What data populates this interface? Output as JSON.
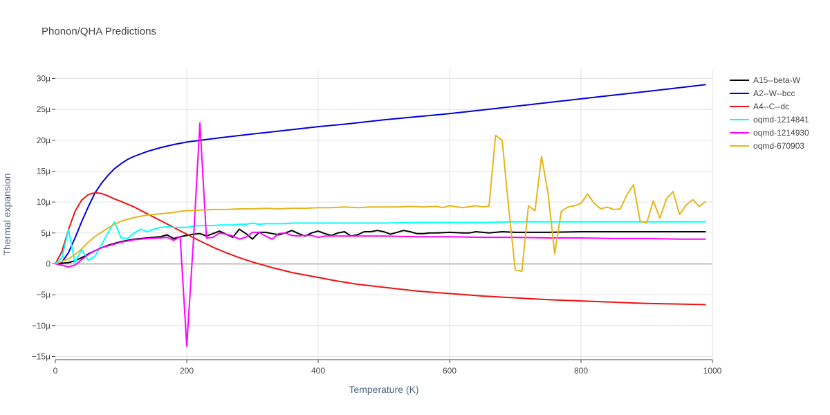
{
  "chart_data": {
    "type": "line",
    "title": "Phonon/QHA Predictions",
    "xlabel": "Temperature (K)",
    "ylabel": "Thermal expansion",
    "xlim": [
      0,
      1000
    ],
    "ylim": [
      -15.5,
      31.5
    ],
    "xticks": [
      0,
      200,
      400,
      600,
      800,
      1000
    ],
    "xtick_labels": [
      "0",
      "200",
      "400",
      "600",
      "800",
      "1000"
    ],
    "yticks": [
      -15,
      -10,
      -5,
      0,
      5,
      10,
      15,
      20,
      25,
      30
    ],
    "ytick_labels": [
      "−15µ",
      "−10µ",
      "−5µ",
      "0",
      "5µ",
      "10µ",
      "15µ",
      "20µ",
      "25µ",
      "30µ"
    ],
    "series": [
      {
        "name": "A15--beta-W",
        "color": "#000000",
        "x": [
          0,
          10,
          20,
          30,
          40,
          50,
          60,
          70,
          80,
          90,
          100,
          120,
          140,
          160,
          170,
          180,
          190,
          200,
          210,
          220,
          230,
          240,
          250,
          260,
          270,
          280,
          290,
          300,
          310,
          320,
          330,
          340,
          350,
          360,
          370,
          380,
          390,
          400,
          410,
          420,
          430,
          440,
          450,
          460,
          470,
          480,
          490,
          500,
          510,
          520,
          530,
          540,
          550,
          560,
          570,
          580,
          600,
          620,
          630,
          640,
          650,
          660,
          680,
          700,
          750,
          800,
          850,
          900,
          950,
          990
        ],
        "y": [
          0,
          0.1,
          0.2,
          0.5,
          1.0,
          1.6,
          2.1,
          2.6,
          3.0,
          3.3,
          3.6,
          4.0,
          4.2,
          4.4,
          4.7,
          4.1,
          4.4,
          4.6,
          4.8,
          4.9,
          4.5,
          4.9,
          5.3,
          4.8,
          4.3,
          5.6,
          4.9,
          4.0,
          5.1,
          5.1,
          4.9,
          4.7,
          5.0,
          5.4,
          4.9,
          4.5,
          5.0,
          5.3,
          4.9,
          4.6,
          5.0,
          5.2,
          4.5,
          4.7,
          5.2,
          5.2,
          5.4,
          5.2,
          4.8,
          5.1,
          5.4,
          5.2,
          4.9,
          4.9,
          5.0,
          5.0,
          5.1,
          5.0,
          5.0,
          5.2,
          5.1,
          5.0,
          5.2,
          5.1,
          5.1,
          5.2,
          5.2,
          5.2,
          5.2,
          5.2
        ]
      },
      {
        "name": "A2--W--bcc",
        "color": "#0000dd",
        "x": [
          0,
          10,
          20,
          30,
          40,
          50,
          60,
          70,
          80,
          90,
          100,
          110,
          120,
          140,
          160,
          180,
          200,
          250,
          300,
          350,
          400,
          450,
          500,
          550,
          600,
          650,
          700,
          750,
          800,
          850,
          900,
          950,
          990
        ],
        "y": [
          0,
          0.3,
          1.8,
          4.2,
          6.8,
          9.2,
          11.4,
          13.0,
          14.3,
          15.4,
          16.2,
          16.9,
          17.4,
          18.2,
          18.8,
          19.3,
          19.7,
          20.4,
          21.0,
          21.6,
          22.2,
          22.7,
          23.3,
          23.8,
          24.3,
          24.9,
          25.5,
          26.1,
          26.7,
          27.3,
          27.9,
          28.5,
          29.0
        ]
      },
      {
        "name": "A4--C--dc",
        "color": "#ee1111",
        "x": [
          0,
          10,
          20,
          30,
          40,
          50,
          60,
          70,
          80,
          90,
          100,
          120,
          140,
          160,
          180,
          200,
          220,
          240,
          260,
          280,
          300,
          330,
          360,
          400,
          430,
          460,
          500,
          550,
          600,
          650,
          700,
          750,
          800,
          850,
          900,
          950,
          990
        ],
        "y": [
          0,
          2.0,
          5.5,
          8.5,
          10.3,
          11.2,
          11.5,
          11.4,
          11.0,
          10.5,
          10.1,
          9.2,
          8.1,
          7.0,
          5.9,
          4.8,
          3.7,
          2.7,
          1.8,
          1.0,
          0.3,
          -0.6,
          -1.4,
          -2.2,
          -2.8,
          -3.3,
          -3.8,
          -4.4,
          -4.8,
          -5.2,
          -5.5,
          -5.8,
          -6.0,
          -6.2,
          -6.4,
          -6.5,
          -6.6
        ]
      },
      {
        "name": "oqmd-1214841",
        "color": "#00ffff",
        "x": [
          0,
          10,
          20,
          30,
          40,
          50,
          60,
          70,
          80,
          90,
          100,
          110,
          120,
          130,
          140,
          150,
          160,
          170,
          180,
          190,
          200,
          210,
          220,
          230,
          240,
          250,
          260,
          270,
          280,
          290,
          300,
          310,
          320,
          330,
          340,
          350,
          360,
          400,
          450,
          500,
          550,
          600,
          650,
          700,
          750,
          800,
          850,
          900,
          950,
          990
        ],
        "y": [
          0,
          1.0,
          5.5,
          0.2,
          2.3,
          0.6,
          1.2,
          3.0,
          5.0,
          6.8,
          4.2,
          4.1,
          5.0,
          5.6,
          5.2,
          5.6,
          5.9,
          6.0,
          5.9,
          5.9,
          5.9,
          6.1,
          6.2,
          6.2,
          6.2,
          6.3,
          6.3,
          6.3,
          6.4,
          6.4,
          6.6,
          6.4,
          6.5,
          6.5,
          6.5,
          6.5,
          6.6,
          6.6,
          6.6,
          6.6,
          6.7,
          6.7,
          6.7,
          6.8,
          6.8,
          6.8,
          6.8,
          6.8,
          6.8,
          6.8
        ]
      },
      {
        "name": "oqmd-1214930",
        "color": "#ff00ff",
        "x": [
          0,
          10,
          20,
          30,
          40,
          50,
          60,
          70,
          80,
          90,
          100,
          120,
          140,
          160,
          170,
          180,
          190,
          200,
          210,
          220,
          230,
          240,
          250,
          260,
          270,
          280,
          290,
          300,
          310,
          320,
          330,
          340,
          350,
          360,
          370,
          380,
          390,
          400,
          410,
          420,
          450,
          500,
          550,
          600,
          650,
          700,
          750,
          800,
          850,
          900,
          950,
          990
        ],
        "y": [
          0,
          -0.2,
          -0.5,
          -0.2,
          0.7,
          1.5,
          2.1,
          2.6,
          2.9,
          3.2,
          3.5,
          3.9,
          4.1,
          4.2,
          4.3,
          3.8,
          4.4,
          -13.3,
          3.5,
          22.8,
          4.2,
          4.3,
          5.0,
          4.8,
          4.5,
          4.0,
          4.3,
          5.1,
          5.1,
          4.5,
          4.0,
          4.9,
          5.0,
          4.6,
          4.5,
          4.6,
          4.6,
          4.3,
          4.5,
          4.5,
          4.5,
          4.5,
          4.4,
          4.4,
          4.3,
          4.3,
          4.2,
          4.2,
          4.1,
          4.1,
          4.0,
          4.0
        ]
      },
      {
        "name": "oqmd-670903",
        "color": "#e5b51a",
        "x": [
          0,
          10,
          20,
          30,
          40,
          50,
          60,
          70,
          80,
          90,
          100,
          120,
          140,
          160,
          180,
          190,
          200,
          220,
          240,
          260,
          280,
          300,
          320,
          340,
          360,
          380,
          400,
          420,
          440,
          460,
          480,
          500,
          520,
          540,
          560,
          580,
          590,
          600,
          620,
          640,
          650,
          660,
          670,
          680,
          690,
          700,
          710,
          720,
          730,
          740,
          750,
          760,
          770,
          780,
          790,
          800,
          810,
          820,
          830,
          840,
          850,
          860,
          870,
          880,
          890,
          900,
          910,
          920,
          930,
          940,
          950,
          960,
          970,
          980,
          990
        ],
        "y": [
          0,
          0.4,
          0.8,
          1.5,
          2.4,
          3.5,
          4.4,
          5.1,
          5.8,
          6.4,
          6.9,
          7.5,
          7.9,
          8.1,
          8.3,
          8.5,
          8.6,
          8.7,
          8.8,
          8.8,
          8.9,
          8.9,
          9.0,
          8.9,
          9.0,
          9.0,
          9.1,
          9.1,
          9.2,
          9.1,
          9.2,
          9.2,
          9.2,
          9.3,
          9.2,
          9.3,
          9.1,
          9.4,
          9.1,
          9.4,
          9.2,
          9.3,
          20.8,
          20.0,
          9.0,
          -1.0,
          -1.2,
          9.4,
          8.6,
          17.4,
          11.3,
          1.6,
          8.5,
          9.2,
          9.4,
          9.8,
          11.3,
          9.8,
          8.9,
          9.2,
          8.8,
          8.9,
          11.2,
          12.8,
          6.9,
          6.6,
          10.2,
          7.4,
          10.5,
          11.7,
          8.0,
          9.5,
          10.4,
          9.3,
          10.1
        ]
      }
    ]
  }
}
